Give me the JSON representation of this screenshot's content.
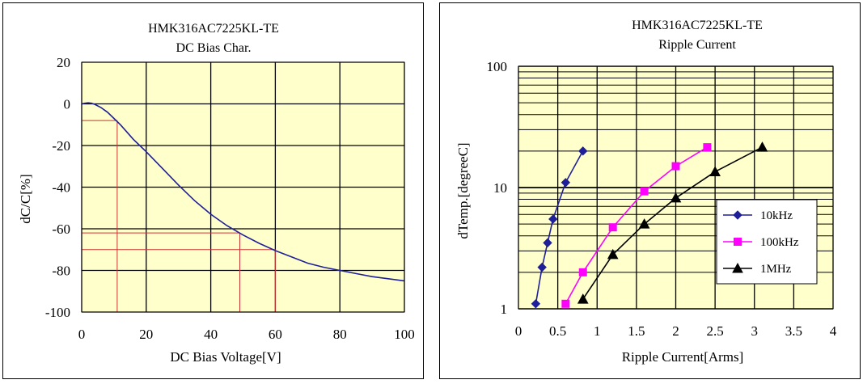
{
  "chart_data": [
    {
      "type": "line",
      "title": "HMK316AC7225KL-TE",
      "subtitle": "DC Bias Char.",
      "xlabel": "DC Bias Voltage[V]",
      "ylabel": "dC/C[%]",
      "xlim": [
        0,
        100
      ],
      "ylim": [
        -100,
        20
      ],
      "xticks": [
        "0",
        "20",
        "40",
        "60",
        "80",
        "100"
      ],
      "yticks": [
        "20",
        "0",
        "-20",
        "-40",
        "-60",
        "-80",
        "-100"
      ],
      "grid": true,
      "plot_background": "#ffffcc",
      "grid_color": "#000000",
      "series": [
        {
          "color": "#1f1f99",
          "x": [
            0,
            1,
            2,
            3,
            4,
            6,
            8,
            10,
            12,
            14,
            16,
            18,
            20,
            25,
            30,
            35,
            40,
            45,
            50,
            55,
            60,
            65,
            70,
            75,
            80,
            85,
            90,
            95,
            100
          ],
          "y": [
            0,
            0.3,
            0.5,
            0.3,
            -0.2,
            -1.8,
            -4,
            -7,
            -10,
            -13.5,
            -17,
            -20,
            -23,
            -31,
            -39,
            -46.5,
            -53,
            -58.5,
            -63,
            -67,
            -70.5,
            -73.5,
            -76.5,
            -78.5,
            -80,
            -81.5,
            -83,
            -84,
            -85
          ]
        }
      ],
      "reference_lines": [
        {
          "color": "#cc3333",
          "x": 11,
          "y": -8
        },
        {
          "color": "#cc3333",
          "x": 49,
          "y": -62
        },
        {
          "color": "#cc3333",
          "x": 60,
          "y": -70
        }
      ]
    },
    {
      "type": "line",
      "title": "HMK316AC7225KL-TE",
      "subtitle": "Ripple Current",
      "xlabel": "Ripple Current[Arms]",
      "ylabel": "dTemp.[degreeC]",
      "xlim": [
        0,
        4
      ],
      "ylim": [
        1,
        100
      ],
      "yscale": "log",
      "xticks": [
        "0",
        "0.5",
        "1",
        "1.5",
        "2",
        "2.5",
        "3",
        "3.5",
        "4"
      ],
      "yticks": [
        "100",
        "10",
        "1"
      ],
      "grid": true,
      "plot_background": "#ffffcc",
      "grid_color": "#000000",
      "legend": "right",
      "series": [
        {
          "name": "10kHz",
          "color": "#1f1f99",
          "marker": "diamond",
          "x": [
            0.22,
            0.3,
            0.37,
            0.44,
            0.6,
            0.82
          ],
          "y": [
            1.1,
            2.2,
            3.5,
            5.5,
            11,
            20
          ]
        },
        {
          "name": "100kHz",
          "color": "#ff00ff",
          "marker": "square",
          "x": [
            0.6,
            0.82,
            1.2,
            1.6,
            2.0,
            2.4
          ],
          "y": [
            1.1,
            2.0,
            4.7,
            9.3,
            15,
            21.5
          ]
        },
        {
          "name": "1MHz",
          "color": "#000000",
          "marker": "triangle",
          "x": [
            0.82,
            1.2,
            1.6,
            2.0,
            2.5,
            3.1
          ],
          "y": [
            1.2,
            2.8,
            5.0,
            8.2,
            13.5,
            21.5
          ]
        }
      ]
    }
  ]
}
